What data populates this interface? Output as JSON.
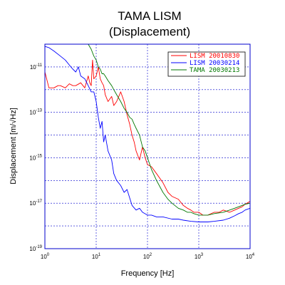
{
  "chart_data": {
    "type": "line",
    "title": "TAMA LISM",
    "subtitle": "(Displacement)",
    "xlabel": "Frequency [Hz]",
    "ylabel": "Displacement [m/√Hz]",
    "xscale": "log",
    "yscale": "log",
    "xlim": [
      1,
      10000
    ],
    "ylim": [
      1e-19,
      1e-10
    ],
    "grid": true,
    "legend_position": "top-right",
    "x_ticks": [
      {
        "value": 1,
        "base": "10",
        "exp": "0"
      },
      {
        "value": 10,
        "base": "10",
        "exp": "1"
      },
      {
        "value": 100,
        "base": "10",
        "exp": "2"
      },
      {
        "value": 1000,
        "base": "10",
        "exp": "3"
      },
      {
        "value": 10000,
        "base": "10",
        "exp": "4"
      }
    ],
    "y_ticks": [
      {
        "value": 1e-11,
        "base": "10",
        "exp": "-11"
      },
      {
        "value": 1e-13,
        "base": "10",
        "exp": "-13"
      },
      {
        "value": 1e-15,
        "base": "10",
        "exp": "-15"
      },
      {
        "value": 1e-17,
        "base": "10",
        "exp": "-17"
      },
      {
        "value": 1e-19,
        "base": "10",
        "exp": "-19"
      }
    ],
    "series": [
      {
        "name": "LISM 20010830",
        "color": "#ff0000",
        "x": [
          1,
          1.2,
          1.5,
          1.8,
          2,
          2.5,
          3,
          3.5,
          4,
          5,
          6,
          7,
          7.5,
          8,
          8.5,
          9,
          10,
          11,
          12,
          13,
          14,
          15,
          17,
          20,
          22,
          25,
          30,
          35,
          40,
          45,
          50,
          55,
          60,
          70,
          80,
          90,
          100,
          120,
          150,
          200,
          250,
          300,
          400,
          500,
          600,
          700,
          800,
          1000,
          1200,
          1500,
          2000,
          2500,
          3000,
          4000,
          5000,
          6000,
          7000,
          8000,
          10000
        ],
        "y": [
          6e-12,
          1.2e-12,
          1.2e-12,
          1.5e-12,
          1.5e-12,
          1.2e-12,
          1.8e-12,
          1.5e-12,
          1.5e-12,
          2e-12,
          1.2e-12,
          4e-12,
          2e-12,
          1.5e-12,
          2e-11,
          3e-12,
          4e-12,
          1e-11,
          3e-12,
          2e-12,
          1.5e-12,
          6e-13,
          3e-13,
          5e-13,
          2e-13,
          3e-13,
          8e-13,
          3e-13,
          8e-14,
          3e-14,
          1e-14,
          5e-15,
          2e-15,
          8e-16,
          3e-15,
          1e-15,
          5e-16,
          4e-16,
          2e-16,
          8e-17,
          3e-17,
          2e-17,
          1.5e-17,
          8e-18,
          6e-18,
          5e-18,
          4e-18,
          4e-18,
          3e-18,
          3e-18,
          4e-18,
          4e-18,
          5e-18,
          4e-18,
          5e-18,
          6e-18,
          7e-18,
          9e-18,
          1.2e-17
        ]
      },
      {
        "name": "LISM 20030214",
        "color": "#0000ff",
        "x": [
          1,
          1.2,
          1.5,
          2,
          2.5,
          3,
          3.5,
          4,
          4.5,
          5,
          6,
          7,
          8,
          9,
          10,
          11,
          12,
          13,
          14,
          15,
          17,
          20,
          22,
          25,
          30,
          35,
          40,
          50,
          60,
          70,
          80,
          100,
          120,
          150,
          200,
          300,
          400,
          500,
          700,
          1000,
          1500,
          2000,
          3000,
          4000,
          5000,
          6000,
          7000,
          8000,
          10000
        ],
        "y": [
          8e-11,
          7e-11,
          5e-11,
          3e-11,
          2e-11,
          1.2e-11,
          8e-12,
          6e-12,
          1e-11,
          4e-12,
          3e-12,
          1.5e-12,
          8e-13,
          8e-13,
          3e-13,
          6e-14,
          2e-14,
          4e-14,
          5e-15,
          1e-14,
          2e-15,
          8e-16,
          2e-16,
          1e-16,
          6e-17,
          3e-17,
          4e-17,
          8e-18,
          5e-18,
          6e-18,
          4e-18,
          3e-18,
          3e-18,
          2.5e-18,
          2.5e-18,
          2e-18,
          2e-18,
          1.8e-18,
          1.6e-18,
          1.5e-18,
          1.5e-18,
          1.6e-18,
          1.8e-18,
          2.2e-18,
          2.8e-18,
          3.5e-18,
          4e-18,
          5e-18,
          6e-18
        ]
      },
      {
        "name": "TAMA 20030213",
        "color": "#007700",
        "x": [
          7,
          8,
          9,
          10,
          11,
          12,
          13,
          14,
          15,
          17,
          20,
          22,
          25,
          30,
          35,
          40,
          45,
          50,
          55,
          60,
          70,
          80,
          90,
          100,
          120,
          150,
          200,
          250,
          300,
          400,
          500,
          600,
          700,
          800,
          1000,
          1200,
          1500,
          2000,
          3000,
          4000,
          5000,
          6000,
          8000,
          10000
        ],
        "y": [
          1e-10,
          6e-11,
          3e-11,
          2e-11,
          1e-11,
          8e-12,
          5e-12,
          5e-12,
          4e-12,
          2.5e-12,
          1.5e-12,
          1e-12,
          6e-13,
          3e-13,
          1.5e-13,
          1e-13,
          6e-14,
          5e-14,
          3e-14,
          2e-14,
          1e-14,
          3e-15,
          2e-15,
          1e-15,
          3e-16,
          1e-16,
          3e-17,
          1.5e-17,
          1e-17,
          6e-18,
          5e-18,
          4e-18,
          4e-18,
          3.5e-18,
          3e-18,
          3e-18,
          3e-18,
          3.5e-18,
          4e-18,
          5e-18,
          6e-18,
          7e-18,
          9e-18,
          1e-17
        ]
      }
    ]
  }
}
